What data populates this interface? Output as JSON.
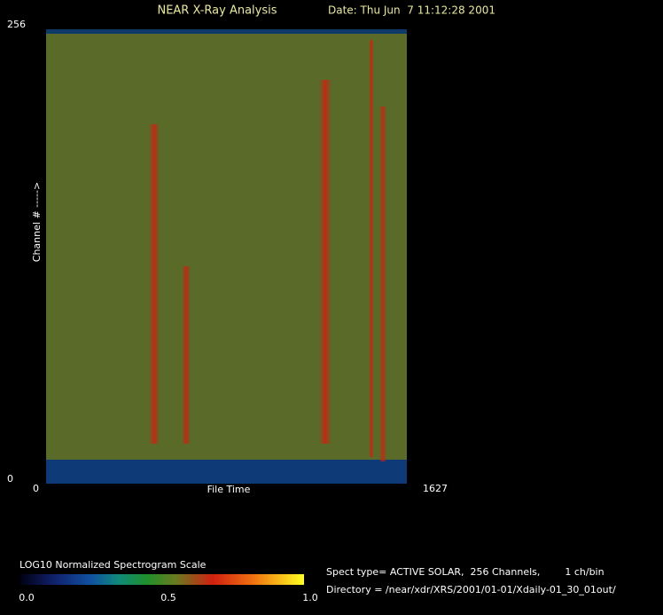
{
  "chart_data": {
    "type": "spectrogram",
    "title": "NEAR X-Ray Analysis",
    "subtitle": "Date: Thu Jun  7 11:12:28 2001",
    "xlabel": "File Time",
    "ylabel": "Channel # ----->",
    "xlim": [
      0,
      1627
    ],
    "xticks": [
      0,
      1627
    ],
    "ylim": [
      0,
      256
    ],
    "yticks": [
      0,
      256
    ],
    "colorbar": {
      "label": "LOG10 Normalized Spectrogram Scale",
      "lim": [
        0,
        1
      ],
      "ticks": [
        {
          "value": 0,
          "label": "0.0"
        },
        0.5,
        {
          "value": 1,
          "label": "1.0"
        }
      ]
    },
    "annotations": [
      "Spect type= ACTIVE SOLAR,  256 Channels,        1 ch/bin",
      "Directory = /near/xdr/XRS/2001/01-01/Xdaily-01_30_01out/"
    ]
  }
}
